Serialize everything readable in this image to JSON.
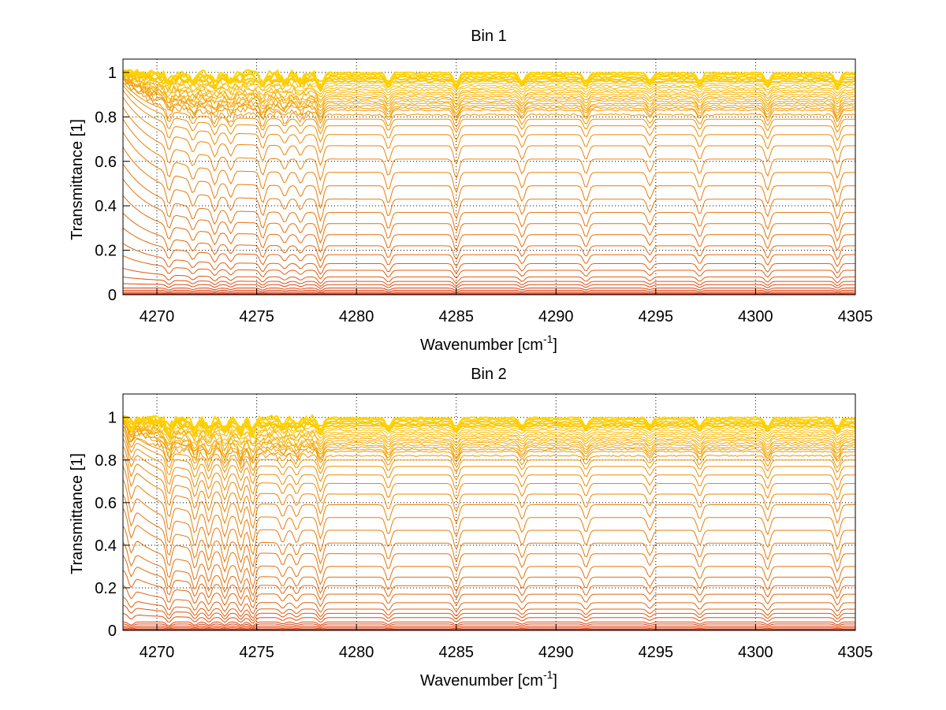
{
  "chart_data": [
    {
      "type": "line",
      "title": "Bin 1",
      "xlabel": "Wavenumber [cm",
      "xlabel_sup": "-1",
      "xlabel_end": "]",
      "ylabel": "Transmittance [1]",
      "xlim": [
        4268.3,
        4305
      ],
      "ylim": [
        0,
        1.06
      ],
      "xticks": [
        4270,
        4275,
        4280,
        4285,
        4290,
        4295,
        4300,
        4305
      ],
      "yticks": [
        0,
        0.2,
        0.4,
        0.6,
        0.8,
        1
      ],
      "grid": true,
      "baseline_levels": [
        0.998,
        0.99,
        0.98,
        0.97,
        0.96,
        0.95,
        0.94,
        0.93,
        0.92,
        0.91,
        0.9,
        0.89,
        0.88,
        0.87,
        0.86,
        0.85,
        0.84,
        0.83,
        0.81,
        0.79,
        0.76,
        0.72,
        0.67,
        0.61,
        0.55,
        0.49,
        0.43,
        0.37,
        0.32,
        0.27,
        0.22,
        0.18,
        0.14,
        0.11,
        0.08,
        0.06,
        0.045,
        0.03,
        0.02,
        0.012,
        0.006,
        0.003
      ],
      "absorption_lines": [
        4270.6,
        4271.8,
        4272.9,
        4273.7,
        4275.3,
        4276.4,
        4277.2,
        4278.2,
        4281.6,
        4285.0,
        4288.3,
        4291.5,
        4294.7,
        4297.2,
        4300.6,
        4304.1
      ],
      "absorption_depth": [
        0.08,
        0.06,
        0.07,
        0.06,
        0.08,
        0.05,
        0.05,
        0.1,
        0.08,
        0.09,
        0.07,
        0.07,
        0.06,
        0.07,
        0.08,
        0.09
      ],
      "low_edge_rise": 0.35,
      "colors": {
        "top": "#ffd400",
        "mid": "#f2a000",
        "low": "#e06010",
        "bottom": "#d82000",
        "baseline_noise": "#00d0ff"
      }
    },
    {
      "type": "line",
      "title": "Bin 2",
      "xlabel": "Wavenumber [cm",
      "xlabel_sup": "-1",
      "xlabel_end": "]",
      "ylabel": "Transmittance [1]",
      "xlim": [
        4268.3,
        4305
      ],
      "ylim": [
        0,
        1.11
      ],
      "xticks": [
        4270,
        4275,
        4280,
        4285,
        4290,
        4295,
        4300,
        4305
      ],
      "yticks": [
        0,
        0.2,
        0.4,
        0.6,
        0.8,
        1
      ],
      "grid": true,
      "baseline_levels": [
        0.998,
        0.99,
        0.98,
        0.97,
        0.96,
        0.95,
        0.94,
        0.93,
        0.92,
        0.91,
        0.9,
        0.89,
        0.88,
        0.87,
        0.86,
        0.85,
        0.84,
        0.82,
        0.8,
        0.77,
        0.73,
        0.69,
        0.64,
        0.59,
        0.53,
        0.47,
        0.41,
        0.36,
        0.3,
        0.25,
        0.21,
        0.17,
        0.13,
        0.1,
        0.08,
        0.06,
        0.04,
        0.03,
        0.02,
        0.012,
        0.006,
        0.003
      ],
      "absorption_lines": [
        4268.7,
        4270.6,
        4271.9,
        4272.6,
        4273.4,
        4274.2,
        4274.8,
        4276.3,
        4277.0,
        4278.2,
        4281.6,
        4285.0,
        4288.3,
        4291.5,
        4294.7,
        4297.2,
        4300.6,
        4304.1
      ],
      "absorption_depth": [
        0.1,
        0.12,
        0.1,
        0.1,
        0.1,
        0.1,
        0.12,
        0.06,
        0.06,
        0.1,
        0.08,
        0.09,
        0.07,
        0.07,
        0.06,
        0.07,
        0.08,
        0.09
      ],
      "low_edge_rise": 0.35,
      "colors": {
        "top": "#ffd400",
        "mid": "#f2a000",
        "low": "#e06010",
        "bottom": "#d82000",
        "baseline_noise": "#00d0ff"
      }
    }
  ]
}
